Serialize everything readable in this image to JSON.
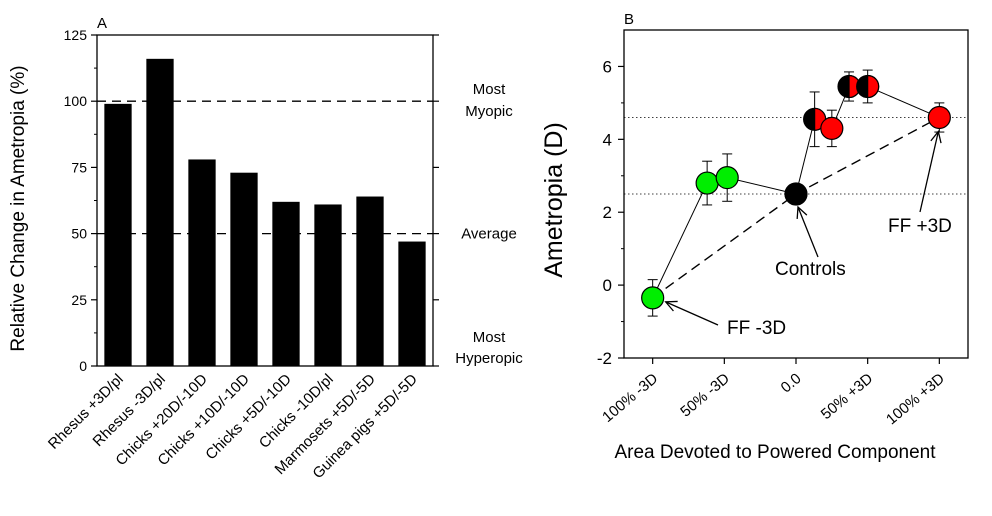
{
  "chart_data": [
    {
      "type": "bar",
      "panel_label": "A",
      "categories": [
        "Rhesus +3D/pl",
        "Rhesus -3D/pl",
        "Chicks +20D/-10D",
        "Chicks +10D/-10D",
        "Chicks +5D/-10D",
        "Chicks -10D/pl",
        "Marmosets +5D/-5D",
        "Guinea pigs +5D/-5D"
      ],
      "values": [
        99,
        116,
        78,
        73,
        62,
        61,
        64,
        47
      ],
      "ylabel": "Relative Change in Ametropia (%)",
      "ylim": [
        0,
        125
      ],
      "yticks": [
        "0",
        "25",
        "50",
        "75",
        "100",
        "125"
      ],
      "bar_color": "#000000",
      "reference_lines": [
        {
          "y": 100,
          "label_line1": "Most",
          "label_line2": "Myopic"
        },
        {
          "y": 50,
          "label_line1": "Average",
          "label_line2": ""
        },
        {
          "y": 0,
          "label_line1": "Most",
          "label_line2": "Hyperopic"
        }
      ]
    },
    {
      "type": "scatter",
      "panel_label": "B",
      "xlabel": "Area Devoted to Powered Component",
      "ylabel": "Ametropia (D)",
      "xlim": [
        -1.2,
        1.2
      ],
      "ylim": [
        -2,
        7
      ],
      "xticks": [
        {
          "x": -1.0,
          "label": "100% -3D"
        },
        {
          "x": -0.5,
          "label": "50% -3D"
        },
        {
          "x": 0.0,
          "label": "0.0"
        },
        {
          "x": 0.5,
          "label": "50% +3D"
        },
        {
          "x": 1.0,
          "label": "100% +3D"
        }
      ],
      "yticks": [
        "-2",
        "0",
        "2",
        "4",
        "6"
      ],
      "points": [
        {
          "x": -1.0,
          "y": -0.35,
          "err": 0.5,
          "color": "#00ee00"
        },
        {
          "x": -0.62,
          "y": 2.8,
          "err": 0.6,
          "color": "#00ee00"
        },
        {
          "x": -0.48,
          "y": 2.95,
          "err": 0.65,
          "color": "#00ee00"
        },
        {
          "x": 0.0,
          "y": 2.5,
          "err": 0,
          "color": "#000000"
        },
        {
          "x": 0.13,
          "y": 4.55,
          "err": 0.75,
          "color": "#000000",
          "half_color": "#ff0000"
        },
        {
          "x": 0.25,
          "y": 4.3,
          "err": 0.5,
          "color": "#ff0000"
        },
        {
          "x": 0.37,
          "y": 5.45,
          "err": 0.4,
          "color": "#000000",
          "half_color": "#ff0000"
        },
        {
          "x": 0.5,
          "y": 5.45,
          "err": 0.45,
          "color": "#000000",
          "half_color": "#ff0000"
        },
        {
          "x": 1.0,
          "y": 4.6,
          "err": 0.4,
          "color": "#ff0000"
        }
      ],
      "connected_path": [
        0,
        1,
        2,
        3,
        4,
        5,
        6,
        7,
        8
      ],
      "dashed_path": [
        0,
        3,
        8
      ],
      "reference_lines": [
        4.6,
        2.5
      ],
      "annotations": [
        {
          "text": "FF -3D",
          "target_point": 0
        },
        {
          "text": "Controls",
          "target_point": 3
        },
        {
          "text": "FF +3D",
          "target_point": 8
        }
      ]
    }
  ]
}
